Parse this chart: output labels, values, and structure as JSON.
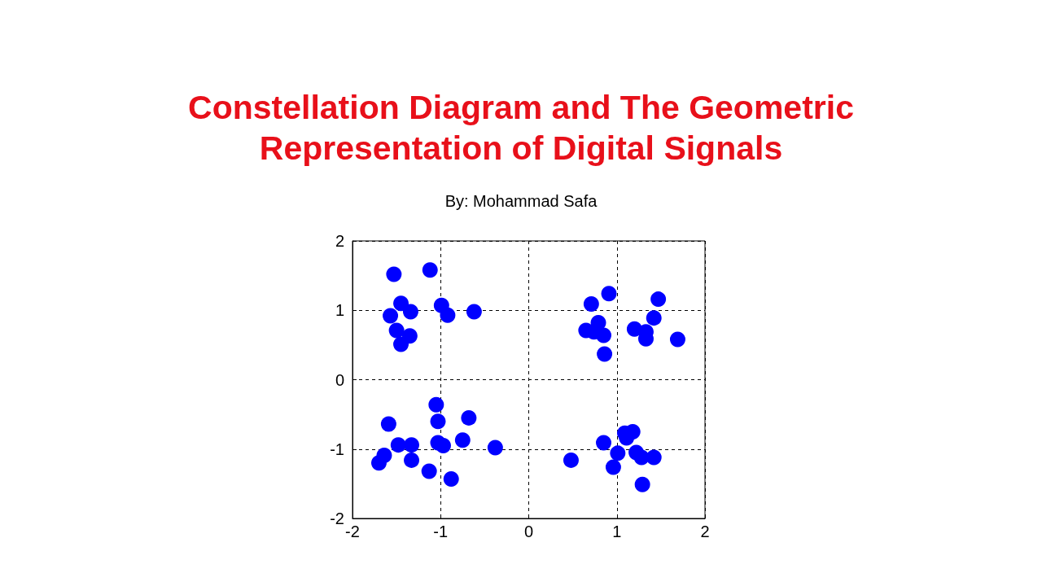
{
  "chart_data": {
    "type": "scatter",
    "title": "Constellation Diagram and The Geometric\nRepresentation of Digital Signals",
    "subtitle": "By: Mohammad Safa",
    "x": [
      -1.53,
      -1.12,
      -1.45,
      -1.34,
      -1.57,
      -0.99,
      -0.92,
      -0.62,
      -1.5,
      -1.35,
      -1.45,
      0.91,
      0.71,
      1.47,
      1.42,
      1.2,
      1.33,
      1.33,
      1.69,
      0.79,
      0.65,
      0.74,
      0.85,
      0.86,
      -1.05,
      -1.03,
      -0.68,
      -1.59,
      -1.48,
      -1.33,
      -1.03,
      -0.97,
      -0.75,
      -0.38,
      -1.64,
      -1.7,
      -1.33,
      -1.13,
      -0.88,
      0.48,
      0.85,
      1.09,
      1.18,
      1.11,
      1.01,
      0.96,
      1.22,
      1.28,
      1.42,
      1.29
    ],
    "series": [
      {
        "color": "#0000ff",
        "values": [
          1.52,
          1.58,
          1.1,
          0.98,
          0.92,
          1.07,
          0.93,
          0.98,
          0.71,
          0.63,
          0.51,
          1.24,
          1.09,
          1.16,
          0.89,
          0.73,
          0.69,
          0.59,
          0.58,
          0.82,
          0.71,
          0.69,
          0.64,
          0.37,
          -0.36,
          -0.6,
          -0.55,
          -0.64,
          -0.94,
          -0.94,
          -0.91,
          -0.95,
          -0.87,
          -0.98,
          -1.09,
          -1.2,
          -1.16,
          -1.32,
          -1.43,
          -1.16,
          -0.91,
          -0.77,
          -0.75,
          -0.84,
          -1.06,
          -1.26,
          -1.05,
          -1.12,
          -1.12,
          -1.51
        ]
      }
    ],
    "xlim": [
      -2,
      2
    ],
    "ylim": [
      -2,
      2
    ],
    "xticks": [
      -2,
      -1,
      0,
      1,
      2
    ],
    "yticks": [
      -2,
      -1,
      0,
      1,
      2
    ],
    "grid": true,
    "marker": "circle"
  }
}
